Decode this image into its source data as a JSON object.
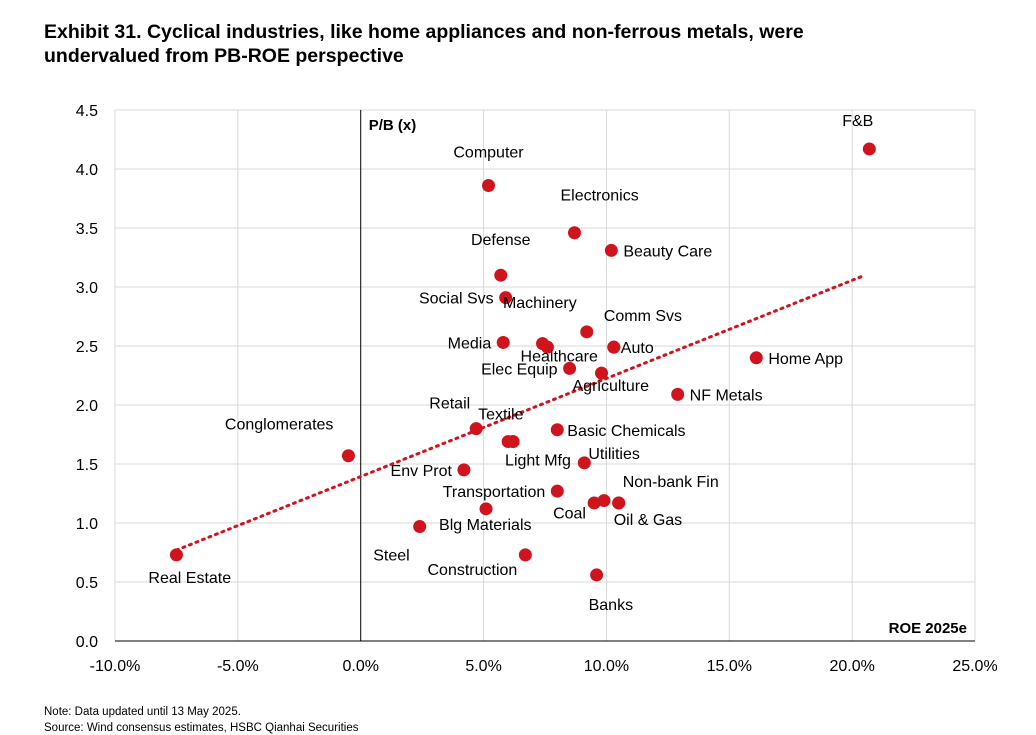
{
  "title": {
    "line1": "Exhibit 31. Cyclical industries, like home appliances and non-ferrous metals, were",
    "line2": "undervalued from PB-ROE perspective"
  },
  "notes": {
    "note": "Note: Data updated until 13 May 2025.",
    "source": "Source: Wind consensus estimates, HSBC Qianhai Securities"
  },
  "colors": {
    "point": "#d0141e",
    "trend": "#d0141e",
    "grid": "#d9d9d9",
    "axis": "#000000"
  },
  "chart_data": {
    "type": "scatter",
    "title": "Exhibit 31. Cyclical industries, like home appliances and non-ferrous metals, were undervalued from PB-ROE perspective",
    "xlabel": "ROE 2025e",
    "ylabel": "P/B (x)",
    "xlim": [
      -0.1,
      0.25
    ],
    "ylim": [
      0,
      4.5
    ],
    "xticks": [
      -0.1,
      -0.05,
      0,
      0.05,
      0.1,
      0.15,
      0.2,
      0.25
    ],
    "xtick_labels": [
      "-10.0%",
      "-5.0%",
      "0.0%",
      "5.0%",
      "10.0%",
      "15.0%",
      "20.0%",
      "25.0%"
    ],
    "yticks": [
      0,
      0.5,
      1.0,
      1.5,
      2.0,
      2.5,
      3.0,
      3.5,
      4.0,
      4.5
    ],
    "ytick_labels": [
      "0.0",
      "0.5",
      "1.0",
      "1.5",
      "2.0",
      "2.5",
      "3.0",
      "3.5",
      "4.0",
      "4.5"
    ],
    "grid": true,
    "points": [
      {
        "label": "F&B",
        "x": 0.207,
        "y": 4.17,
        "pos": "above-left"
      },
      {
        "label": "Computer",
        "x": 0.052,
        "y": 3.86,
        "pos": "above"
      },
      {
        "label": "Electronics",
        "x": 0.087,
        "y": 3.46,
        "pos": "above-right"
      },
      {
        "label": "Beauty Care",
        "x": 0.102,
        "y": 3.31,
        "pos": "right"
      },
      {
        "label": "Defense",
        "x": 0.057,
        "y": 3.1,
        "pos": "above"
      },
      {
        "label": "Social Svs",
        "x": 0.059,
        "y": 2.91,
        "pos": "left"
      },
      {
        "label": "Machinery",
        "x": 0.092,
        "y": 2.62,
        "pos": "above-left"
      },
      {
        "label": "Comm Svs",
        "x": 0.103,
        "y": 2.49,
        "pos": "above-right"
      },
      {
        "label": "Auto",
        "x": 0.103,
        "y": 2.49,
        "pos": "right"
      },
      {
        "label": "Media",
        "x": 0.058,
        "y": 2.53,
        "pos": "left"
      },
      {
        "label": "Healthcare",
        "x": 0.074,
        "y": 2.52,
        "pos": "below-right"
      },
      {
        "label": "",
        "x": 0.076,
        "y": 2.49,
        "pos": "none"
      },
      {
        "label": "Elec Equip",
        "x": 0.085,
        "y": 2.31,
        "pos": "left"
      },
      {
        "label": "Agriculture",
        "x": 0.098,
        "y": 2.27,
        "pos": "below-right"
      },
      {
        "label": "Home App",
        "x": 0.161,
        "y": 2.4,
        "pos": "right"
      },
      {
        "label": "NF Metals",
        "x": 0.129,
        "y": 2.09,
        "pos": "right"
      },
      {
        "label": "Retail",
        "x": 0.047,
        "y": 1.8,
        "pos": "above-left"
      },
      {
        "label": "Textile",
        "x": 0.06,
        "y": 1.69,
        "pos": "above-right"
      },
      {
        "label": "",
        "x": 0.062,
        "y": 1.69,
        "pos": "none"
      },
      {
        "label": "Basic Chemicals",
        "x": 0.08,
        "y": 1.79,
        "pos": "right"
      },
      {
        "label": "Conglomerates",
        "x": -0.005,
        "y": 1.57,
        "pos": "above-left"
      },
      {
        "label": "Light Mfg",
        "x": 0.062,
        "y": 1.69,
        "pos": "below-right"
      },
      {
        "label": "Utilities",
        "x": 0.091,
        "y": 1.51,
        "pos": "above-right"
      },
      {
        "label": "Env Prot",
        "x": 0.042,
        "y": 1.45,
        "pos": "left"
      },
      {
        "label": "Transportation",
        "x": 0.08,
        "y": 1.27,
        "pos": "left"
      },
      {
        "label": "Non-bank Fin",
        "x": 0.105,
        "y": 1.17,
        "pos": "above-right"
      },
      {
        "label": "",
        "x": 0.095,
        "y": 1.17,
        "pos": "none"
      },
      {
        "label": "Coal",
        "x": 0.099,
        "y": 1.19,
        "pos": "below-left"
      },
      {
        "label": "Oil & Gas",
        "x": 0.105,
        "y": 1.17,
        "pos": "below-right"
      },
      {
        "label": "Blg Materials",
        "x": 0.051,
        "y": 1.12,
        "pos": "below-right"
      },
      {
        "label": "Steel",
        "x": 0.024,
        "y": 0.97,
        "pos": "below-left"
      },
      {
        "label": "Construction",
        "x": 0.067,
        "y": 0.73,
        "pos": "below-left"
      },
      {
        "label": "Real Estate",
        "x": -0.075,
        "y": 0.73,
        "pos": "below-right"
      },
      {
        "label": "Banks",
        "x": 0.096,
        "y": 0.56,
        "pos": "below-right"
      }
    ],
    "trendline": {
      "x": [
        -0.075,
        0.204
      ],
      "y": [
        0.77,
        3.09
      ]
    }
  }
}
